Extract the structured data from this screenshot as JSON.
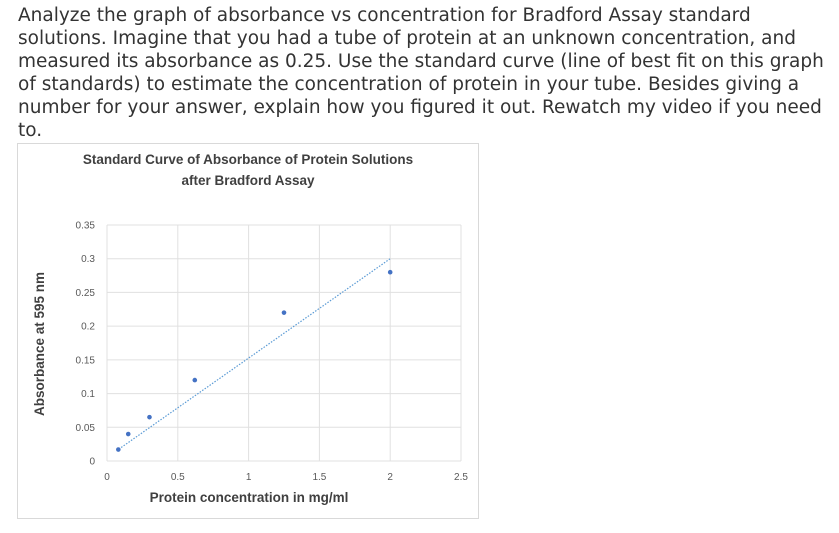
{
  "question": {
    "text": "Analyze the graph of absorbance vs concentration for Bradford Assay standard solutions.  Imagine that you had a tube of protein at an unknown concentration, and measured its absorbance as 0.25.  Use the standard curve (line of best fit on this graph of standards) to estimate the concentration of protein in your tube.  Besides giving a number for your answer, explain how you figured it out. Rewatch my video if you need to."
  },
  "chart_data": {
    "type": "scatter",
    "title_line1": "Standard Curve of Absorbance of Protein Solutions",
    "title_line2": "after Bradford Assay",
    "xlabel": "Protein concentration in mg/ml",
    "ylabel": "Absorbance at 595 nm",
    "xlim": [
      0,
      2.5
    ],
    "ylim": [
      0,
      0.35
    ],
    "x_ticks": [
      "0",
      "0.5",
      "1",
      "1.5",
      "2",
      "2.5"
    ],
    "y_ticks": [
      "0",
      "0.05",
      "0.1",
      "0.15",
      "0.2",
      "0.25",
      "0.3",
      "0.35"
    ],
    "grid": true,
    "trendline": {
      "type": "linear",
      "start": [
        0.1,
        0.02
      ],
      "end": [
        2.0,
        0.3
      ]
    },
    "points": [
      {
        "x": 0.08,
        "y": 0.017
      },
      {
        "x": 0.15,
        "y": 0.04
      },
      {
        "x": 0.3,
        "y": 0.065
      },
      {
        "x": 0.62,
        "y": 0.12
      },
      {
        "x": 1.25,
        "y": 0.22
      },
      {
        "x": 2.0,
        "y": 0.28
      }
    ],
    "colors": {
      "point": "#4472c4",
      "trendline": "#5b9bd5",
      "grid": "#e0e0e0"
    }
  }
}
